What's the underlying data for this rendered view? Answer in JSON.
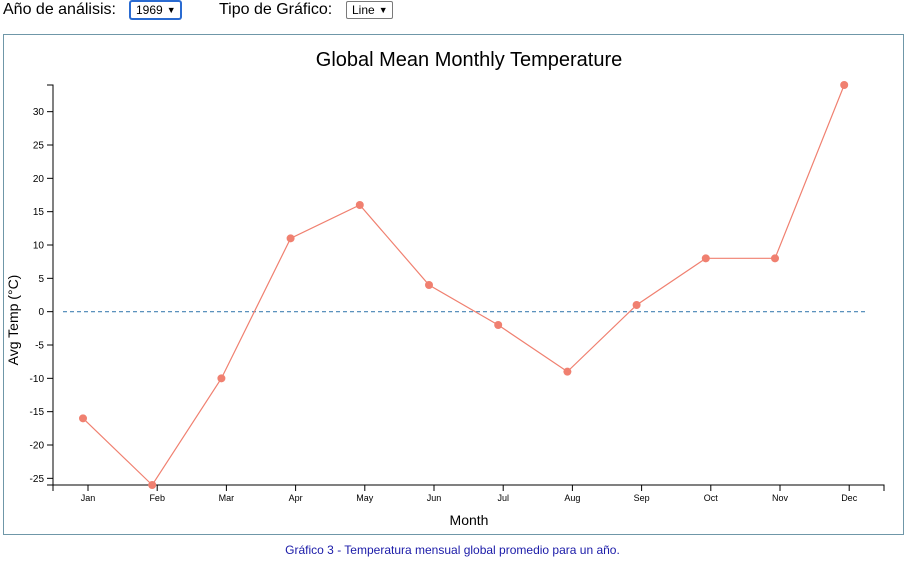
{
  "controls": {
    "year_label": "Año de análisis:",
    "year_value": "1969",
    "chart_type_label": "Tipo de Gráfico:",
    "chart_type_value": "Line",
    "caret": "▼"
  },
  "caption": "Gráfico 3 - Temperatura mensual global promedio para un año.",
  "colors": {
    "line": "#f08070",
    "point": "#f08070",
    "zero_line": "#4682b4",
    "frame_border": "#6f97a8",
    "caption": "#1a1aa8"
  },
  "chart_data": {
    "type": "line",
    "title": "Global Mean Monthly Temperature",
    "xlabel": "Month",
    "ylabel": "Avg Temp (°C)",
    "categories": [
      "Jan",
      "Feb",
      "Mar",
      "Apr",
      "May",
      "Jun",
      "Jul",
      "Aug",
      "Sep",
      "Oct",
      "Nov",
      "Dec"
    ],
    "values": [
      -16,
      -26,
      -10,
      11,
      16,
      4,
      -2,
      -9,
      1,
      8,
      8,
      34
    ],
    "yticks": [
      30,
      25,
      20,
      15,
      10,
      5,
      0,
      -5,
      -10,
      -15,
      -20,
      -25
    ],
    "ylim": [
      -26,
      34
    ],
    "reference_line": {
      "y": 0,
      "style": "dashed"
    },
    "grid": false,
    "legend": "none"
  }
}
